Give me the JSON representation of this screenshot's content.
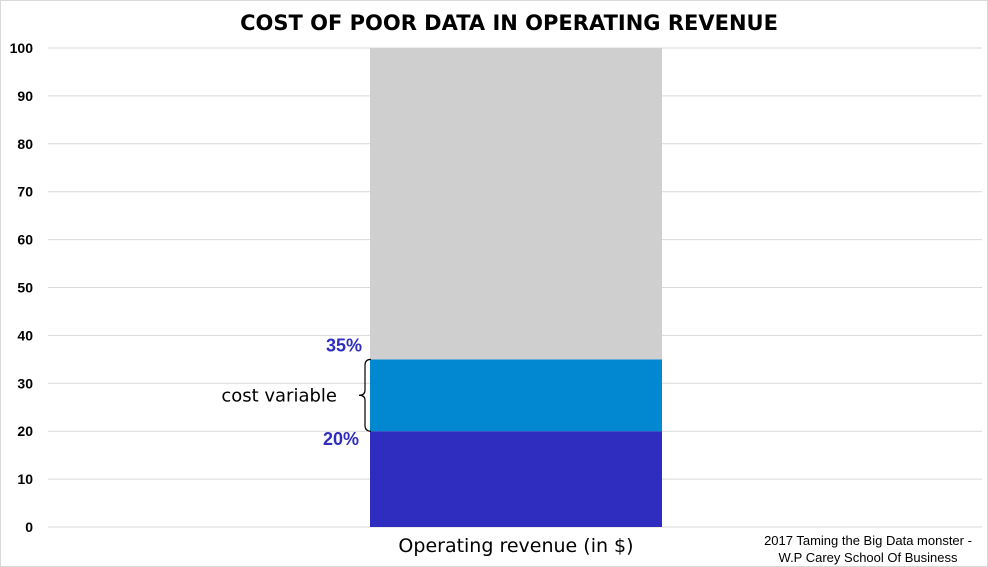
{
  "chart_data": {
    "type": "bar",
    "title": "COST OF POOR DATA IN OPERATING REVENUE",
    "categories": [
      "Operating revenue (in $)"
    ],
    "ylim": [
      0,
      100
    ],
    "yticks": [
      "0",
      "10",
      "20",
      "30",
      "40",
      "50",
      "60",
      "70",
      "80",
      "90",
      "100"
    ],
    "grid": true,
    "stacked": true,
    "segments": [
      {
        "from": 0,
        "to": 20,
        "color": "#2e2dbf"
      },
      {
        "from": 20,
        "to": 35,
        "color": "#0288d1"
      },
      {
        "from": 35,
        "to": 100,
        "color": "#d0cfd0"
      }
    ],
    "annotations": {
      "upper_label": "35%",
      "lower_label": "20%",
      "bracket_label": "cost variable",
      "label_color": "#2e2dbf"
    },
    "source_lines": [
      "2017 Taming the Big Data monster -",
      "W.P Carey School Of Business"
    ]
  }
}
